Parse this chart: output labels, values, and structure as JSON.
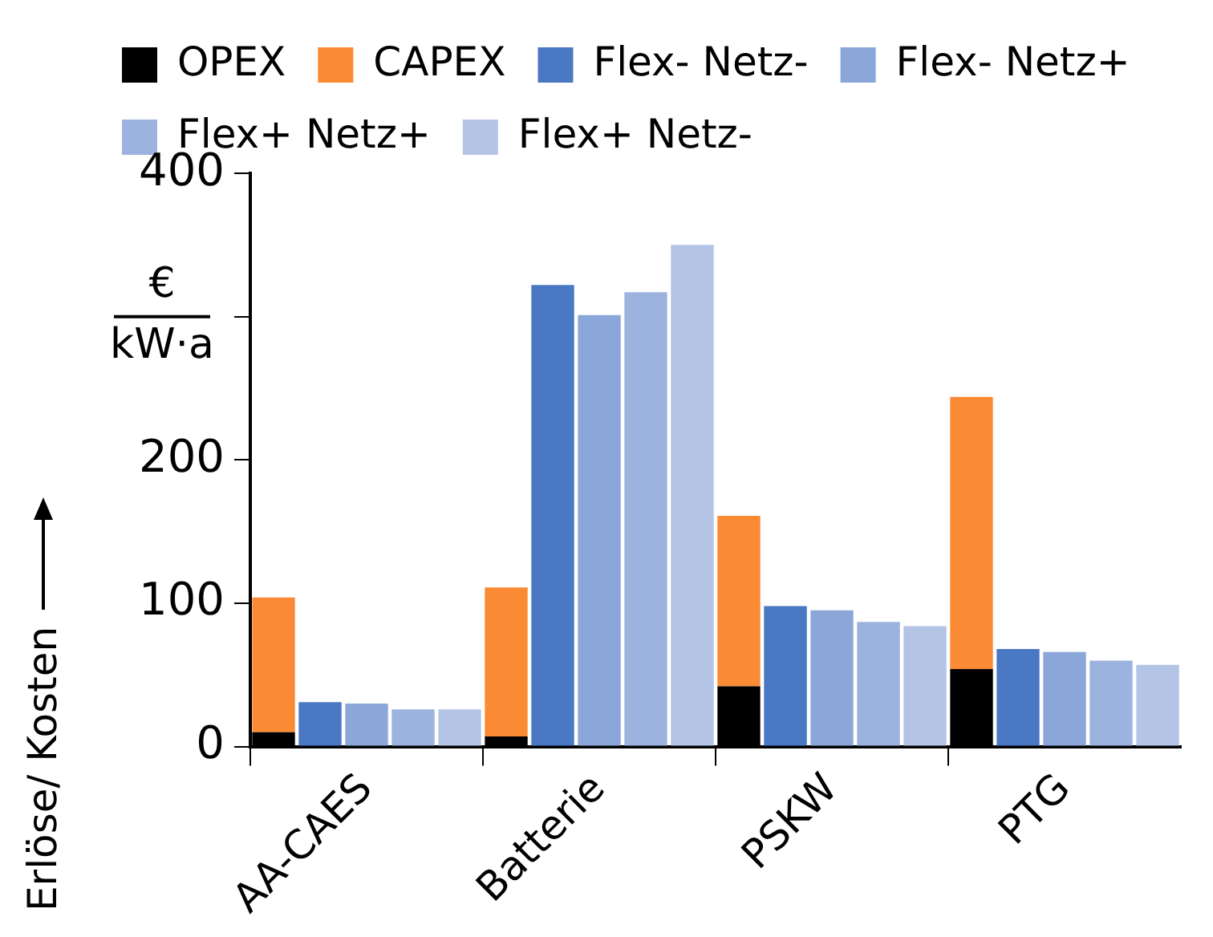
{
  "chart_data": {
    "type": "bar",
    "ylabel": "Erlöse/ Kosten",
    "annotations": [
      "€",
      "kW·a"
    ],
    "categories": [
      null,
      null,
      "AA-CAES",
      null,
      null,
      null,
      null,
      "Batterie",
      null,
      null,
      null,
      null,
      "PSKW",
      null,
      null,
      null,
      null,
      "PTG",
      null,
      null
    ],
    "series": [
      {
        "name": "OPEX",
        "color": "#000000",
        "values": [
          10,
          null,
          null,
          null,
          null,
          7,
          null,
          null,
          null,
          null,
          42,
          null,
          null,
          null,
          null,
          54,
          null,
          null,
          null,
          null
        ]
      },
      {
        "name": "CAPEX",
        "color": "#fb8a35",
        "values": [
          94,
          null,
          null,
          null,
          null,
          104,
          null,
          null,
          null,
          null,
          119,
          null,
          null,
          null,
          null,
          190,
          null,
          null,
          null,
          null
        ]
      },
      {
        "name": "Flex- Netz-",
        "color": "#4a78c2",
        "values": [
          null,
          31,
          null,
          null,
          null,
          null,
          322,
          null,
          null,
          null,
          null,
          98,
          null,
          null,
          null,
          null,
          68,
          null,
          null,
          null
        ]
      },
      {
        "name": "Flex- Netz+",
        "color": "#8ba7d9",
        "values": [
          null,
          null,
          30,
          null,
          null,
          null,
          null,
          301,
          null,
          null,
          null,
          null,
          95,
          null,
          null,
          null,
          null,
          66,
          null,
          null
        ]
      },
      {
        "name": "Flex+ Netz+",
        "color": "#9cb3df",
        "values": [
          null,
          null,
          null,
          26,
          null,
          null,
          null,
          null,
          317,
          null,
          null,
          null,
          null,
          87,
          null,
          null,
          null,
          null,
          60,
          null
        ]
      },
      {
        "name": "Flex+ Netz-",
        "color": "#b3c4e6",
        "values": [
          null,
          null,
          null,
          null,
          26,
          null,
          null,
          null,
          null,
          350,
          null,
          null,
          null,
          null,
          84,
          null,
          null,
          null,
          null,
          57
        ]
      }
    ],
    "stacked": true,
    "ylim": [
      0,
      400
    ],
    "yticks": [
      0,
      100,
      200,
      {
        "value": 300,
        "label": null
      },
      400
    ],
    "grid": false,
    "legend": "top"
  }
}
